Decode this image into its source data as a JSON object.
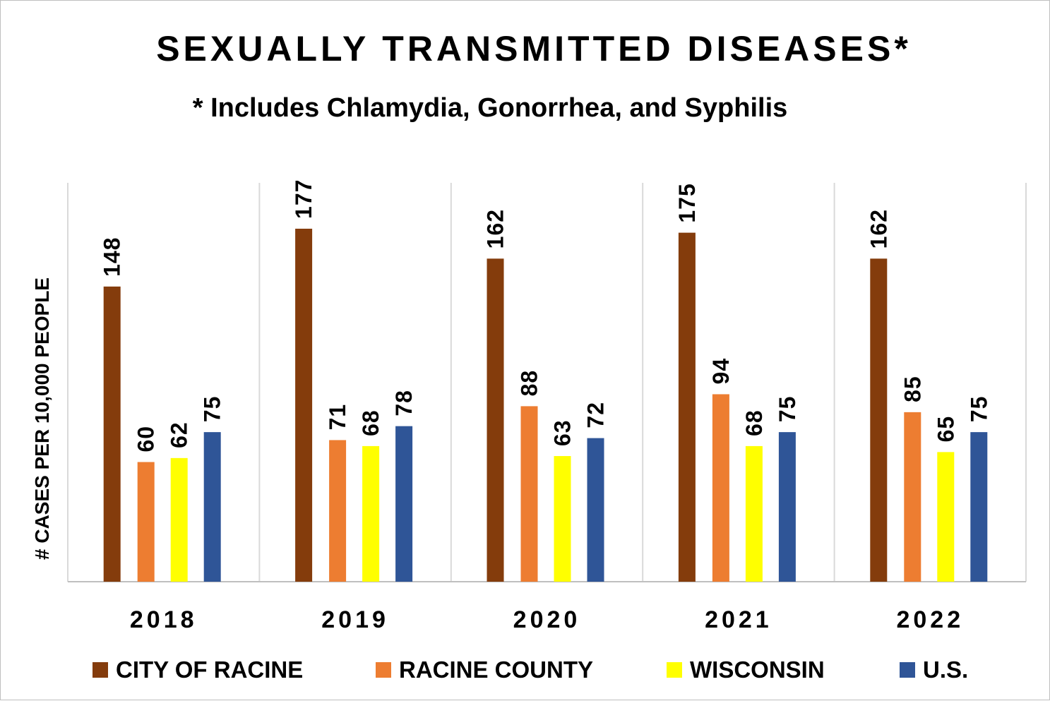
{
  "chart_data": {
    "type": "bar",
    "title": "SEXUALLY TRANSMITTED DISEASES*",
    "subtitle": "* Includes Chlamydia, Gonorrhea, and Syphilis",
    "ylabel": "# CASES PER 10,000 PEOPLE",
    "xlabel": "",
    "categories": [
      "2018",
      "2019",
      "2020",
      "2021",
      "2022"
    ],
    "ylim": [
      0,
      200
    ],
    "grid": false,
    "legend_position": "bottom",
    "series": [
      {
        "name": "CITY OF RACINE",
        "color": "#843C0C",
        "values": [
          148,
          177,
          162,
          175,
          162
        ]
      },
      {
        "name": "RACINE COUNTY",
        "color": "#ED7D31",
        "values": [
          60,
          71,
          88,
          94,
          85
        ]
      },
      {
        "name": "WISCONSIN",
        "color": "#FFFF00",
        "values": [
          62,
          68,
          63,
          68,
          65
        ]
      },
      {
        "name": "U.S.",
        "color": "#2F5597",
        "values": [
          75,
          78,
          72,
          75,
          75
        ]
      }
    ]
  }
}
